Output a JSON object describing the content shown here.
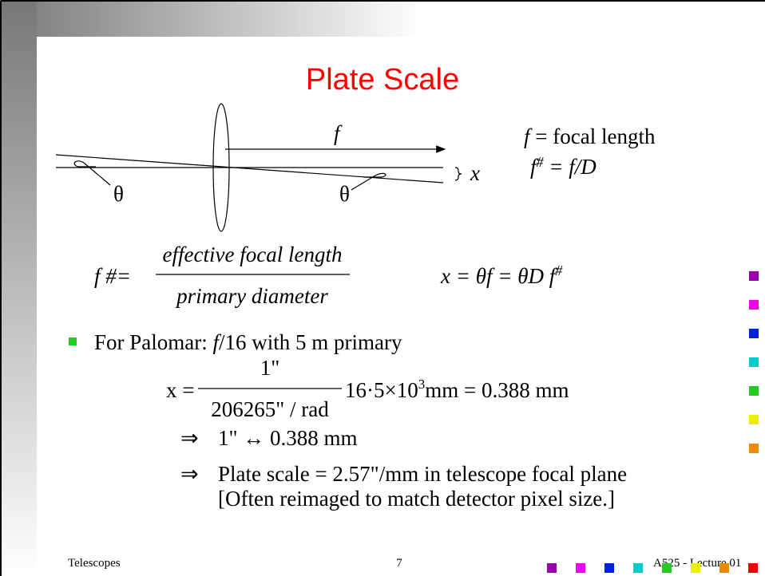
{
  "title": "Plate Scale",
  "diagram": {
    "focal_label": "f",
    "theta_left": "θ",
    "theta_right": "θ",
    "x_label": "x"
  },
  "definitions": [
    {
      "symbol": "f",
      "text": " = focal length"
    },
    {
      "symbol": "f",
      "sup": "#",
      "text": " = f/D"
    }
  ],
  "equation1": {
    "lhs": "f #=",
    "numerator": "effective focal length",
    "denominator": "primary diameter"
  },
  "equation2": {
    "text": "x = θf = θD f",
    "sup": "#"
  },
  "bullet": {
    "lead": "For Palomar:  ",
    "symbol": "f",
    "text": "/16 with 5 m primary"
  },
  "equation3": {
    "lhs": "x =",
    "numerator": "1\"",
    "denominator": "206265\" / rad",
    "body": "16·5×10",
    "sup": "3",
    "tail": "mm = 0.388 mm"
  },
  "sub_lines": [
    {
      "arrow": "⇒",
      "text": "1\" ↔ 0.388 mm"
    },
    {
      "arrow": "⇒",
      "text": "Plate scale = 2.57\"/mm in telescope focal plane"
    },
    {
      "text": "[Often reimaged to match detector pixel size.]"
    }
  ],
  "footer": {
    "left": "Telescopes",
    "center": "7",
    "right": "A525 - Lecture 01"
  }
}
